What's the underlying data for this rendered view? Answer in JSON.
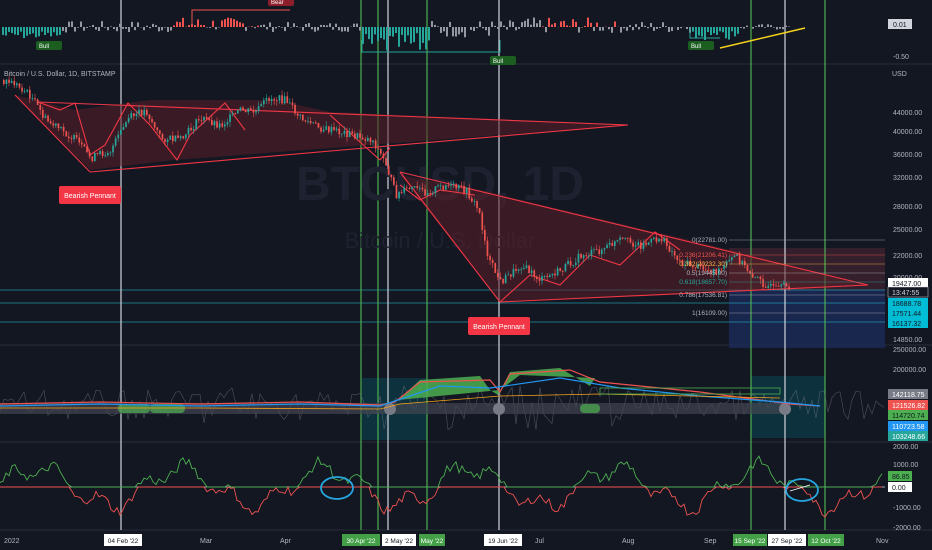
{
  "colors": {
    "background": "#131722",
    "bull": "#26a69a",
    "bear": "#ef5350",
    "pattern": "#f23645",
    "pattern_fill": "#5b1f28",
    "grid": "#1e222d",
    "text": "#b2b5be",
    "white_line": "#d1d4dc",
    "green_line": "#4caf50",
    "yellow_line": "#f7d21a",
    "cyan_line": "#26c6da",
    "blue_box": "#1b2a5a",
    "teal_box": "#0b3e4a"
  },
  "top_panel": {
    "labels": {
      "bull_1": "Bull",
      "bull_2": "Bull",
      "bull_3": "Bull",
      "bear_top": "Bear"
    },
    "axis": {
      "value_1": "0.01",
      "value_2": "-0.50"
    }
  },
  "main_panel": {
    "symbol_label": "Bitcoin / U.S. Dollar, 1D, BITSTAMP",
    "currency": "USD",
    "watermark_ticker": "BTCUSD, 1D",
    "watermark_name": "Bitcoin / U.S. Dollar",
    "pattern_label_1": "Bearish Pennant",
    "pattern_label_2": "Bearish Pennant",
    "fib_levels": [
      {
        "label": "0(22781.00)",
        "value": 22781
      },
      {
        "label": "0.236(21206.41)",
        "value": 21206.41
      },
      {
        "label": "0.382(20232.30)",
        "value": 20232.3
      },
      {
        "label": "0.5(19445.00)",
        "value": 19445.0
      },
      {
        "label": "0.618(18657.70)",
        "value": 18657.7
      },
      {
        "label": "0.786(17536.81)",
        "value": 17536.81
      },
      {
        "label": "1(16109.00)",
        "value": 16109.0
      }
    ],
    "price_axis": [
      "44000.00",
      "40000.00",
      "36000.00",
      "32000.00",
      "28000.00",
      "25000.00",
      "22000.00",
      "20000.00",
      "14850.00"
    ],
    "price_badges": [
      {
        "text": "19427.00",
        "kind": "current"
      },
      {
        "text": "13:47:55",
        "kind": "timer"
      },
      {
        "text": "18688.78",
        "kind": "cyan"
      },
      {
        "text": "17571.44",
        "kind": "cyan"
      },
      {
        "text": "16137.32",
        "kind": "cyan"
      }
    ]
  },
  "middle_panel": {
    "axis": [
      "250000.00",
      "200000.00"
    ],
    "badges": [
      {
        "text": "142118.75",
        "kind": "gray"
      },
      {
        "text": "121526.82",
        "kind": "red"
      },
      {
        "text": "114720.74",
        "kind": "green"
      },
      {
        "text": "110723.58",
        "kind": "blue"
      },
      {
        "text": "103248.66",
        "kind": "teal"
      }
    ]
  },
  "bottom_panel": {
    "axis": [
      "2000.00",
      "1000.00",
      "-1000.00",
      "-2000.00"
    ],
    "badges": [
      {
        "text": "86.85",
        "kind": "green"
      },
      {
        "text": "0.00",
        "kind": "white"
      }
    ]
  },
  "time_axis": {
    "labels": [
      "2022",
      "Mar",
      "Apr",
      "Jul",
      "Aug",
      "Sep",
      "Nov"
    ],
    "markers": [
      {
        "text": "04 Feb '22",
        "kind": "white"
      },
      {
        "text": "30 Apr '22",
        "kind": "green"
      },
      {
        "text": "2 May '22",
        "kind": "white"
      },
      {
        "text": "May '22",
        "kind": "green"
      },
      {
        "text": "19 Jun '22",
        "kind": "white"
      },
      {
        "text": "15 Sep '22",
        "kind": "green"
      },
      {
        "text": "27 Sep '22",
        "kind": "white"
      },
      {
        "text": "12 Oct '22",
        "kind": "green"
      }
    ]
  },
  "chart_data": {
    "type": "candlestick",
    "title": "Bitcoin / U.S. Dollar, 1D, BITSTAMP",
    "ylabel": "USD",
    "ylim": [
      14850,
      48000
    ],
    "x": [
      "2022-01",
      "2022-02-04",
      "2022-03",
      "2022-04",
      "2022-05",
      "2022-06",
      "2022-06-19",
      "2022-07",
      "2022-08",
      "2022-09",
      "2022-09-27"
    ],
    "close_approx": [
      47000,
      37000,
      43000,
      46500,
      38000,
      29000,
      19000,
      21000,
      24000,
      19500,
      19427
    ],
    "patterns": [
      {
        "name": "Bearish Pennant",
        "start": "2022-01",
        "end": "2022-04"
      },
      {
        "name": "Bearish Pennant",
        "start": "2022-05",
        "end": "2022-09"
      }
    ]
  }
}
